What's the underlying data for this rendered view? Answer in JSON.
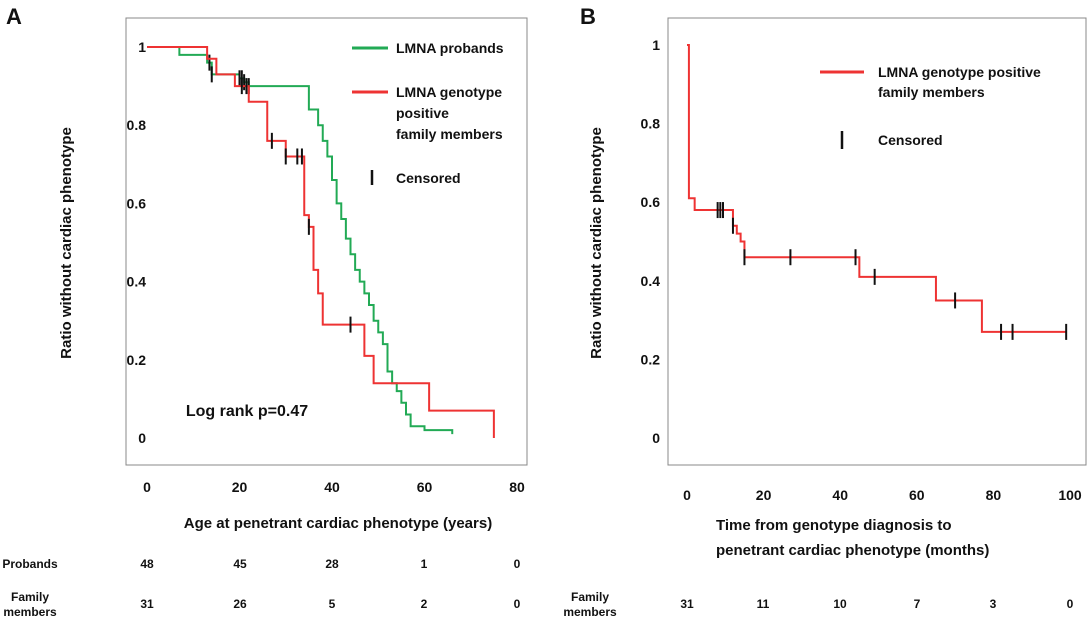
{
  "colors": {
    "probands": "#22aa55",
    "family": "#ee3333",
    "censor": "#111111"
  },
  "chart_data": [
    {
      "panel": "A",
      "type": "line",
      "step": true,
      "xlabel": "Age at penetrant cardiac phenotype (years)",
      "ylabel": "Ratio without cardiac phenotype",
      "xlim": [
        0,
        80
      ],
      "ylim": [
        0,
        1
      ],
      "xticks": [
        0,
        20,
        40,
        60,
        80
      ],
      "yticks": [
        0,
        0.2,
        0.4,
        0.6,
        0.8,
        1
      ],
      "annotation": "Log rank p=0.47",
      "legend": [
        "LMNA probands",
        "LMNA genotype positive family members",
        "Censored"
      ],
      "series": [
        {
          "name": "LMNA probands",
          "color": "#22aa55",
          "x": [
            0,
            7,
            13,
            14,
            20,
            21,
            22,
            35,
            37,
            38,
            39,
            40,
            41,
            42,
            43,
            44,
            45,
            46,
            47,
            48,
            49,
            50,
            51,
            52,
            53,
            54,
            55,
            56,
            57,
            60,
            66
          ],
          "y": [
            1,
            0.98,
            0.96,
            0.93,
            0.92,
            0.91,
            0.9,
            0.84,
            0.8,
            0.76,
            0.72,
            0.66,
            0.6,
            0.56,
            0.51,
            0.47,
            0.43,
            0.4,
            0.37,
            0.34,
            0.3,
            0.27,
            0.24,
            0.17,
            0.14,
            0.12,
            0.09,
            0.06,
            0.03,
            0.02,
            0.01
          ],
          "censored": [
            13.5,
            14,
            20,
            20.5,
            21,
            22
          ]
        },
        {
          "name": "LMNA genotype positive family members",
          "color": "#ee3333",
          "x": [
            0,
            13,
            15,
            19,
            22,
            26,
            30,
            34,
            35,
            36,
            37,
            38,
            47,
            49,
            61,
            75
          ],
          "y": [
            1,
            0.97,
            0.93,
            0.9,
            0.86,
            0.76,
            0.72,
            0.57,
            0.54,
            0.43,
            0.37,
            0.29,
            0.21,
            0.14,
            0.07,
            0.0
          ],
          "censored": [
            20.5,
            21.5,
            27,
            30,
            32.5,
            33.5,
            35,
            44
          ]
        }
      ],
      "risk_table": {
        "rows": [
          {
            "label": "Probands",
            "values": [
              "48",
              "45",
              "28",
              "1",
              "0"
            ]
          },
          {
            "label": "Family members",
            "values": [
              "31",
              "26",
              "5",
              "2",
              "0"
            ]
          }
        ]
      }
    },
    {
      "panel": "B",
      "type": "line",
      "step": true,
      "xlabel": "Time from genotype diagnosis to penetrant cardiac phenotype (months)",
      "ylabel": "Ratio without cardiac phenotype",
      "xlim": [
        0,
        100
      ],
      "ylim": [
        0,
        1
      ],
      "xticks": [
        0,
        20,
        40,
        60,
        80,
        100
      ],
      "yticks": [
        0,
        0.2,
        0.4,
        0.6,
        0.8,
        1
      ],
      "legend": [
        "LMNA genotype positive family members",
        "Censored"
      ],
      "series": [
        {
          "name": "LMNA genotype positive family members",
          "color": "#ee3333",
          "x": [
            0,
            0.5,
            2,
            12,
            13,
            14,
            15,
            45,
            65,
            77,
            99
          ],
          "y": [
            1,
            0.61,
            0.58,
            0.54,
            0.52,
            0.5,
            0.46,
            0.41,
            0.35,
            0.27,
            0.27
          ],
          "censored": [
            8,
            8.7,
            9.4,
            12,
            15,
            27,
            44,
            49,
            70,
            82,
            85,
            99
          ]
        }
      ],
      "risk_table": {
        "rows": [
          {
            "label": "Family members",
            "values": [
              "31",
              "11",
              "10",
              "7",
              "3",
              "0"
            ]
          }
        ]
      }
    }
  ],
  "text": {
    "panelA": {
      "letter": "A",
      "xlabel": "Age at penetrant cardiac phenotype (years)",
      "ylabel": "Ratio without cardiac phenotype",
      "legend1": "LMNA probands",
      "legend2a": "LMNA genotype",
      "legend2b": "positive",
      "legend2c": "family members",
      "legend3": "Censored",
      "annotation": "Log rank p=0.47",
      "row1_label": "Probands",
      "row2_label_a": "Family",
      "row2_label_b": "members"
    },
    "panelB": {
      "letter": "B",
      "xlabel_a": "Time from genotype diagnosis to",
      "xlabel_b": "penetrant cardiac phenotype (months)",
      "ylabel": "Ratio without cardiac phenotype",
      "legend1a": "LMNA genotype positive",
      "legend1b": "family members",
      "legend2": "Censored",
      "row1_label_a": "Family",
      "row1_label_b": "members"
    }
  }
}
